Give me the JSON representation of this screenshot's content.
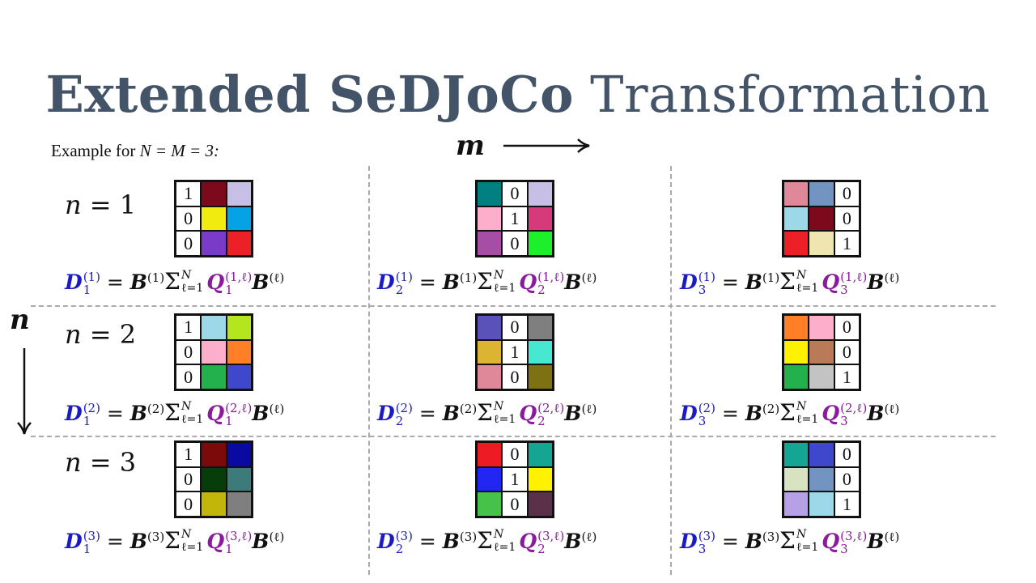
{
  "title": {
    "bold": "Extended SeDJoCo",
    "regular": "Transformation"
  },
  "subtitle": {
    "text": "Example for",
    "math": "N = M = 3:"
  },
  "axes": {
    "m": "m",
    "n": "n"
  },
  "rows": [
    {
      "label_var": "n",
      "label_eq": "= 1",
      "grids": [
        [
          [
            "1",
            "#7c0a1c"
          ],
          [
            "",
            "#c7bfe6"
          ],
          [
            "0",
            "#f2eb0f"
          ],
          [
            "",
            "#06a2e6"
          ],
          [
            "0",
            "#7a3cc8"
          ],
          [
            "",
            "#ed1f27"
          ]
        ],
        [
          [
            "",
            "#008080"
          ],
          [
            "0",
            "#ffffff"
          ],
          [
            "",
            "#c7bfe6"
          ],
          [
            "",
            "#fcaecb"
          ],
          [
            "1",
            "#ffffff"
          ],
          [
            "",
            "#d63a7b"
          ],
          [
            "",
            "#a64ea6"
          ],
          [
            "0",
            "#ffffff"
          ],
          [
            "",
            "#1df02b"
          ]
        ],
        [
          [
            "",
            "#df8899"
          ],
          [
            "",
            "#7393c0"
          ],
          [
            "0",
            "#ffffff"
          ],
          [
            "",
            "#9dd8e8"
          ],
          [
            "",
            "#7c0a1c"
          ],
          [
            "0",
            "#ffffff"
          ],
          [
            "",
            "#ed1f27"
          ],
          [
            "",
            "#efe5b0"
          ],
          [
            "1",
            "#ffffff"
          ]
        ]
      ],
      "formulas": [
        {
          "d_sub": "1",
          "d_sup": "(1)",
          "b_sup": "(1)",
          "q_sub": "1",
          "q_sup": "(1,ℓ)",
          "sum_top": "N",
          "sum_bot": "ℓ=1",
          "b2_sup": "(ℓ)"
        },
        {
          "d_sub": "2",
          "d_sup": "(1)",
          "b_sup": "(1)",
          "q_sub": "2",
          "q_sup": "(1,ℓ)",
          "sum_top": "N",
          "sum_bot": "ℓ=1",
          "b2_sup": "(ℓ)"
        },
        {
          "d_sub": "3",
          "d_sup": "(1)",
          "b_sup": "(1)",
          "q_sub": "3",
          "q_sup": "(1,ℓ)",
          "sum_top": "N",
          "sum_bot": "ℓ=1",
          "b2_sup": "(ℓ)"
        }
      ]
    },
    {
      "label_var": "n",
      "label_eq": "= 2",
      "grids": [
        [
          [
            "",
            "#9dd8e8"
          ],
          [
            "",
            "#b5e61d"
          ],
          [
            "0",
            "#ffffff"
          ],
          [
            "",
            "#fcaecb"
          ],
          [
            "",
            "#ff7f27"
          ],
          [
            "0",
            "#ffffff"
          ],
          [
            "",
            "#22b14c"
          ],
          [
            "",
            "#3f48cc"
          ]
        ],
        [
          [
            "",
            "#5a52b8"
          ],
          [
            "0",
            "#ffffff"
          ],
          [
            "",
            "#7f7f7f"
          ],
          [
            "",
            "#dbb431"
          ],
          [
            "1",
            "#ffffff"
          ],
          [
            "",
            "#46e8d1"
          ],
          [
            "",
            "#df8899"
          ],
          [
            "0",
            "#ffffff"
          ],
          [
            "",
            "#7d7113"
          ]
        ],
        [
          [
            "",
            "#ff7f27"
          ],
          [
            "",
            "#fcaecb"
          ],
          [
            "0",
            "#ffffff"
          ],
          [
            "",
            "#fff200"
          ],
          [
            "",
            "#b97a57"
          ],
          [
            "0",
            "#ffffff"
          ],
          [
            "",
            "#22b14c"
          ],
          [
            "",
            "#c3c3c3"
          ],
          [
            "1",
            "#ffffff"
          ]
        ]
      ],
      "formulas": [
        {
          "d_sub": "1",
          "d_sup": "(2)",
          "b_sup": "(2)",
          "q_sub": "1",
          "q_sup": "(2,ℓ)",
          "sum_top": "N",
          "sum_bot": "ℓ=1",
          "b2_sup": "(ℓ)"
        },
        {
          "d_sub": "2",
          "d_sup": "(2)",
          "b_sup": "(2)",
          "q_sub": "2",
          "q_sup": "(2,ℓ)",
          "sum_top": "N",
          "sum_bot": "ℓ=1",
          "b2_sup": "(ℓ)"
        },
        {
          "d_sub": "3",
          "d_sup": "(2)",
          "b_sup": "(2)",
          "q_sub": "3",
          "q_sup": "(2,ℓ)",
          "sum_top": "N",
          "sum_bot": "ℓ=1",
          "b2_sup": "(ℓ)"
        }
      ]
    },
    {
      "label_var": "n",
      "label_eq": "= 3",
      "grids": [
        [
          [
            "",
            "#7c0a0a"
          ],
          [
            "",
            "#0a0aa3"
          ],
          [
            "0",
            "#ffffff"
          ],
          [
            "",
            "#063d0a"
          ],
          [
            "",
            "#3d7b7b"
          ],
          [
            "0",
            "#ffffff"
          ],
          [
            "",
            "#c2b60b"
          ],
          [
            "",
            "#7f7f7f"
          ]
        ],
        [
          [
            "",
            "#ed1c24"
          ],
          [
            "0",
            "#ffffff"
          ],
          [
            "",
            "#14a692"
          ],
          [
            "",
            "#2126f0"
          ],
          [
            "1",
            "#ffffff"
          ],
          [
            "",
            "#fff200"
          ],
          [
            "",
            "#46c24b"
          ],
          [
            "0",
            "#ffffff"
          ],
          [
            "",
            "#5a3149"
          ]
        ],
        [
          [
            "",
            "#14a692"
          ],
          [
            "",
            "#3f48cc"
          ],
          [
            "0",
            "#ffffff"
          ],
          [
            "",
            "#d8e2c0"
          ],
          [
            "",
            "#7393c0"
          ],
          [
            "0",
            "#ffffff"
          ],
          [
            "",
            "#b6a0e6"
          ],
          [
            "",
            "#9dd8e8"
          ],
          [
            "1",
            "#ffffff"
          ]
        ]
      ],
      "formulas": [
        {
          "d_sub": "1",
          "d_sup": "(3)",
          "b_sup": "(3)",
          "q_sub": "1",
          "q_sup": "(3,ℓ)",
          "sum_top": "N",
          "sum_bot": "ℓ=1",
          "b2_sup": "(ℓ)"
        },
        {
          "d_sub": "2",
          "d_sup": "(3)",
          "b_sup": "(3)",
          "q_sub": "2",
          "q_sup": "(3,ℓ)",
          "sum_top": "N",
          "sum_bot": "ℓ=1",
          "b2_sup": "(ℓ)"
        },
        {
          "d_sub": "3",
          "d_sup": "(3)",
          "b_sup": "(3)",
          "q_sub": "3",
          "q_sup": "(3,ℓ)",
          "sum_top": "N",
          "sum_bot": "ℓ=1",
          "b2_sup": "(ℓ)"
        }
      ]
    }
  ]
}
